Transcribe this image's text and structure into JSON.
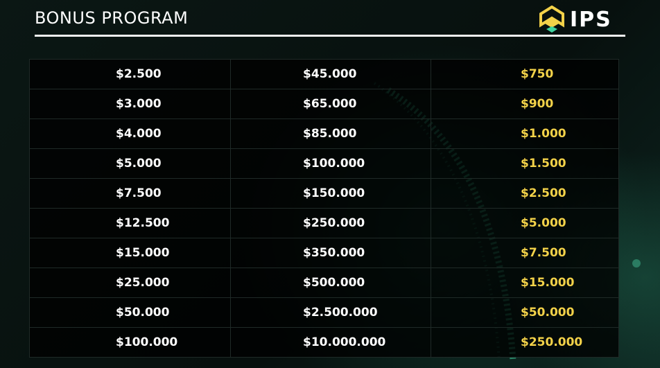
{
  "header": {
    "title": "BONUS PROGRAM",
    "logo": "IPS"
  },
  "table": {
    "rows": [
      [
        "$2.500",
        "$45.000",
        "$750"
      ],
      [
        "$3.000",
        "$65.000",
        "$900"
      ],
      [
        "$4.000",
        "$85.000",
        "$1.000"
      ],
      [
        "$5.000",
        "$100.000",
        "$1.500"
      ],
      [
        "$7.500",
        "$150.000",
        "$2.500"
      ],
      [
        "$12.500",
        "$250.000",
        "$5.000"
      ],
      [
        "$15.000",
        "$350.000",
        "$7.500"
      ],
      [
        "$25.000",
        "$500.000",
        "$15.000"
      ],
      [
        "$50.000",
        "$2.500.000",
        "$50.000"
      ],
      [
        "$100.000",
        "$10.000.000",
        "$250.000"
      ]
    ]
  }
}
